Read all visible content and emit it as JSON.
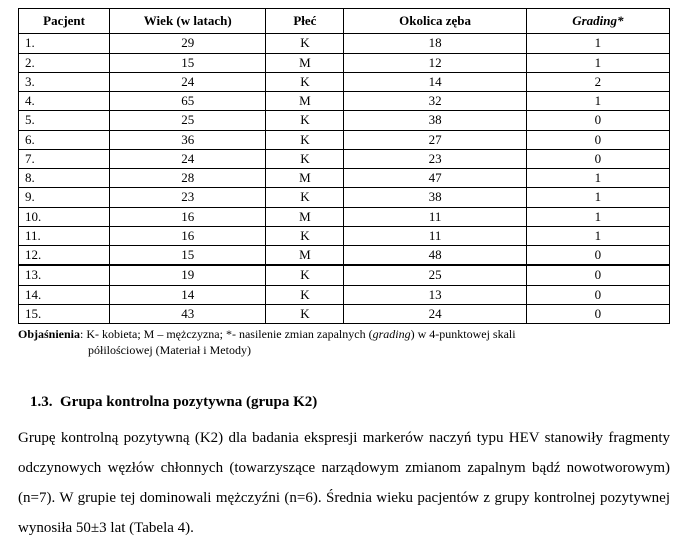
{
  "table": {
    "columns": [
      "Pacjent",
      "Wiek (w latach)",
      "Płeć",
      "Okolica zęba",
      "Grading*"
    ],
    "header_italic": [
      false,
      false,
      false,
      false,
      true
    ],
    "rows": [
      {
        "pat": "1.",
        "age": "29",
        "sex": "K",
        "region": "18",
        "grade": "1"
      },
      {
        "pat": "2.",
        "age": "15",
        "sex": "M",
        "region": "12",
        "grade": "1"
      },
      {
        "pat": "3.",
        "age": "24",
        "sex": "K",
        "region": "14",
        "grade": "2"
      },
      {
        "pat": "4.",
        "age": "65",
        "sex": "M",
        "region": "32",
        "grade": "1"
      },
      {
        "pat": "5.",
        "age": "25",
        "sex": "K",
        "region": "38",
        "grade": "0"
      },
      {
        "pat": "6.",
        "age": "36",
        "sex": "K",
        "region": "27",
        "grade": "0"
      },
      {
        "pat": "7.",
        "age": "24",
        "sex": "K",
        "region": "23",
        "grade": "0"
      },
      {
        "pat": "8.",
        "age": "28",
        "sex": "M",
        "region": "47",
        "grade": "1"
      },
      {
        "pat": "9.",
        "age": "23",
        "sex": "K",
        "region": "38",
        "grade": "1"
      },
      {
        "pat": "10.",
        "age": "16",
        "sex": "M",
        "region": "11",
        "grade": "1"
      },
      {
        "pat": "11.",
        "age": "16",
        "sex": "K",
        "region": "11",
        "grade": "1"
      },
      {
        "pat": "12.",
        "age": "15",
        "sex": "M",
        "region": "48",
        "grade": "0"
      },
      {
        "pat": "13.",
        "age": "19",
        "sex": "K",
        "region": "25",
        "grade": "0"
      },
      {
        "pat": "14.",
        "age": "14",
        "sex": "K",
        "region": "13",
        "grade": "0"
      },
      {
        "pat": "15.",
        "age": "43",
        "sex": "K",
        "region": "24",
        "grade": "0"
      }
    ],
    "thick_before_row_index": 12,
    "col_widths_pct": [
      14,
      24,
      12,
      28,
      22
    ],
    "border_color": "#000000",
    "background_color": "#ffffff"
  },
  "caption": {
    "label": "Objaśnienia",
    "line1": ": K- kobieta; M – mężczyzna; *- nasilenie zmian zapalnych (",
    "italic1": "grading",
    "line1b": ") w 4-punktowej skali",
    "line2": "półilościowej (Materiał i Metody)"
  },
  "heading": {
    "number": "1.3.",
    "title": "Grupa kontrolna pozytywna (grupa K2)"
  },
  "paragraph": {
    "text": "Grupę kontrolną pozytywną (K2) dla badania ekspresji markerów naczyń typu HEV stanowiły fragmenty odczynowych węzłów chłonnych (towarzyszące narządowym zmianom zapalnym bądź nowotworowym) (n=7). W grupie tej dominowali mężczyźni (n=6). Średnia wieku pacjentów z grupy kontrolnej pozytywnej wynosiła 50±3 lat (Tabela 4)."
  }
}
